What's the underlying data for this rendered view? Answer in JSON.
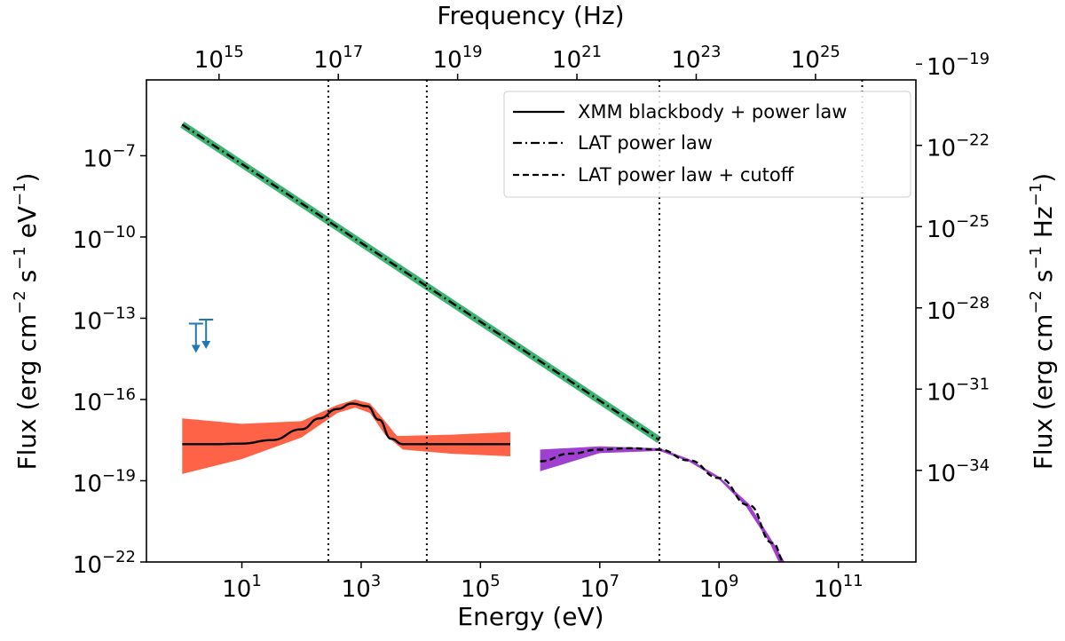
{
  "chart_data": {
    "type": "line",
    "title": "",
    "x_axis": {
      "label": "Energy (eV)",
      "scale": "log",
      "range_log10": [
        -0.6,
        12.3
      ],
      "ticks": [
        {
          "log": 1,
          "base": "10",
          "exp": "1"
        },
        {
          "log": 3,
          "base": "10",
          "exp": "3"
        },
        {
          "log": 5,
          "base": "10",
          "exp": "5"
        },
        {
          "log": 7,
          "base": "10",
          "exp": "7"
        },
        {
          "log": 9,
          "base": "10",
          "exp": "9"
        },
        {
          "log": 11,
          "base": "10",
          "exp": "11"
        }
      ]
    },
    "x_axis_top": {
      "label": "Frequency (Hz)",
      "scale": "log",
      "ticks": [
        {
          "log": 15,
          "base": "10",
          "exp": "15"
        },
        {
          "log": 17,
          "base": "10",
          "exp": "17"
        },
        {
          "log": 19,
          "base": "10",
          "exp": "19"
        },
        {
          "log": 21,
          "base": "10",
          "exp": "21"
        },
        {
          "log": 23,
          "base": "10",
          "exp": "23"
        },
        {
          "log": 25,
          "base": "10",
          "exp": "25"
        }
      ]
    },
    "y_axis": {
      "label_parts": [
        "Flux (erg cm",
        "−2",
        " s",
        "−1",
        " eV",
        "−1",
        ")"
      ],
      "scale": "log",
      "range_log10": [
        -22,
        -4.2
      ],
      "ticks": [
        {
          "log": -7,
          "base": "10",
          "exp": "−7"
        },
        {
          "log": -10,
          "base": "10",
          "exp": "−10"
        },
        {
          "log": -13,
          "base": "10",
          "exp": "−13"
        },
        {
          "log": -16,
          "base": "10",
          "exp": "−16"
        },
        {
          "log": -19,
          "base": "10",
          "exp": "−19"
        },
        {
          "log": -22,
          "base": "10",
          "exp": "−22"
        }
      ]
    },
    "y_axis_right": {
      "label_parts": [
        "Flux (erg cm",
        "−2",
        " s",
        "−1",
        " Hz",
        "−1",
        ")"
      ],
      "scale": "log",
      "ticks": [
        {
          "log": -19,
          "base": "10",
          "exp": "−19"
        },
        {
          "log": -22,
          "base": "10",
          "exp": "−22"
        },
        {
          "log": -25,
          "base": "10",
          "exp": "−25"
        },
        {
          "log": -28,
          "base": "10",
          "exp": "−28"
        },
        {
          "log": -31,
          "base": "10",
          "exp": "−31"
        },
        {
          "log": -34,
          "base": "10",
          "exp": "−34"
        }
      ]
    },
    "vertical_lines_log_eV": [
      2.45,
      4.1,
      8.0,
      11.4
    ],
    "series": [
      {
        "name": "XMM blackbody + power law",
        "style": "solid",
        "color": "#000000",
        "band_color": "#ff6347",
        "points": [
          {
            "x": 0.0,
            "y": -17.65
          },
          {
            "x": 0.5,
            "y": -17.65
          },
          {
            "x": 1.0,
            "y": -17.63
          },
          {
            "x": 1.5,
            "y": -17.5
          },
          {
            "x": 2.0,
            "y": -17.1
          },
          {
            "x": 2.3,
            "y": -16.7
          },
          {
            "x": 2.6,
            "y": -16.35
          },
          {
            "x": 2.85,
            "y": -16.15
          },
          {
            "x": 3.1,
            "y": -16.25
          },
          {
            "x": 3.3,
            "y": -16.75
          },
          {
            "x": 3.5,
            "y": -17.45
          },
          {
            "x": 3.7,
            "y": -17.65
          },
          {
            "x": 4.5,
            "y": -17.65
          },
          {
            "x": 5.5,
            "y": -17.65
          }
        ],
        "band_upper": [
          {
            "x": 0.0,
            "y": -16.7
          },
          {
            "x": 1.0,
            "y": -16.9
          },
          {
            "x": 2.0,
            "y": -16.8
          },
          {
            "x": 2.6,
            "y": -16.2
          },
          {
            "x": 2.9,
            "y": -16.0
          },
          {
            "x": 3.15,
            "y": -16.15
          },
          {
            "x": 3.4,
            "y": -16.8
          },
          {
            "x": 3.6,
            "y": -17.35
          },
          {
            "x": 4.5,
            "y": -17.3
          },
          {
            "x": 5.5,
            "y": -17.2
          }
        ],
        "band_lower": [
          {
            "x": 5.5,
            "y": -18.1
          },
          {
            "x": 4.5,
            "y": -18.0
          },
          {
            "x": 3.7,
            "y": -17.85
          },
          {
            "x": 3.4,
            "y": -17.3
          },
          {
            "x": 3.15,
            "y": -16.5
          },
          {
            "x": 2.9,
            "y": -16.3
          },
          {
            "x": 2.6,
            "y": -16.5
          },
          {
            "x": 2.0,
            "y": -17.4
          },
          {
            "x": 1.0,
            "y": -18.2
          },
          {
            "x": 0.0,
            "y": -18.75
          }
        ]
      },
      {
        "name": "LAT power law",
        "style": "dashdot",
        "color": "#000000",
        "band_color": "#3cb371",
        "points": [
          {
            "x": 0.0,
            "y": -5.85
          },
          {
            "x": 8.0,
            "y": -17.5
          }
        ]
      },
      {
        "name": "LAT power law + cutoff",
        "style": "dashed",
        "color": "#000000",
        "band_color": "#a040d0",
        "points": [
          {
            "x": 6.0,
            "y": -18.28
          },
          {
            "x": 6.5,
            "y": -18.0
          },
          {
            "x": 7.0,
            "y": -17.85
          },
          {
            "x": 7.5,
            "y": -17.8
          },
          {
            "x": 8.0,
            "y": -17.85
          },
          {
            "x": 8.5,
            "y": -18.25
          },
          {
            "x": 9.0,
            "y": -18.9
          },
          {
            "x": 9.5,
            "y": -19.9
          },
          {
            "x": 9.9,
            "y": -21.3
          },
          {
            "x": 10.1,
            "y": -22.0
          }
        ],
        "band_upper": [
          {
            "x": 6.0,
            "y": -17.85
          },
          {
            "x": 7.0,
            "y": -17.73
          },
          {
            "x": 8.0,
            "y": -17.8
          },
          {
            "x": 8.5,
            "y": -18.2
          },
          {
            "x": 9.0,
            "y": -18.85
          },
          {
            "x": 9.5,
            "y": -19.85
          },
          {
            "x": 9.9,
            "y": -21.25
          },
          {
            "x": 10.1,
            "y": -22.0
          }
        ],
        "band_lower": [
          {
            "x": 10.0,
            "y": -22.0
          },
          {
            "x": 9.85,
            "y": -21.3
          },
          {
            "x": 9.45,
            "y": -19.95
          },
          {
            "x": 9.0,
            "y": -18.95
          },
          {
            "x": 8.5,
            "y": -18.3
          },
          {
            "x": 8.0,
            "y": -17.9
          },
          {
            "x": 7.0,
            "y": -17.98
          },
          {
            "x": 6.0,
            "y": -18.65
          }
        ]
      }
    ],
    "upper_limits": [
      {
        "x": 0.23,
        "y": -13.2,
        "color": "#1f77b4"
      },
      {
        "x": 0.4,
        "y": -13.05,
        "color": "#1f77b4"
      }
    ],
    "legend": {
      "position": "top-right",
      "entries": [
        {
          "label": "XMM blackbody + power law",
          "style": "solid"
        },
        {
          "label": "LAT power law",
          "style": "dashdot"
        },
        {
          "label": "LAT power law + cutoff",
          "style": "dashed"
        }
      ]
    }
  }
}
